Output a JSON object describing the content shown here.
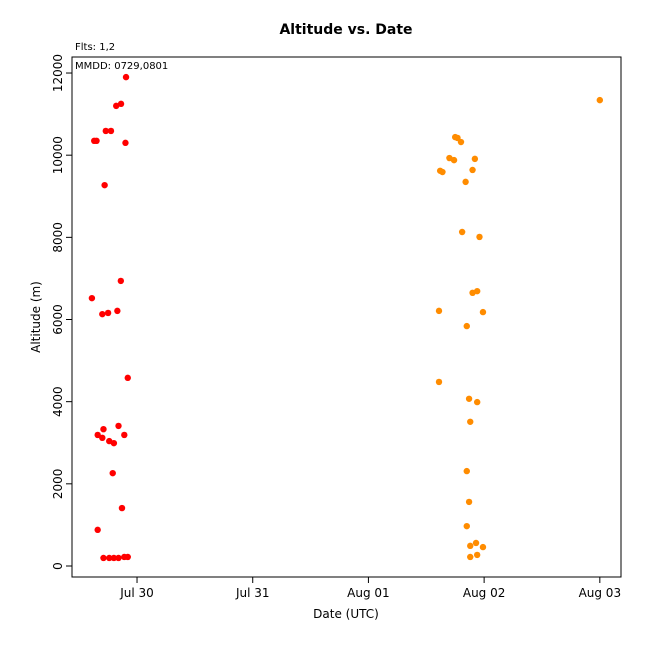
{
  "chart_data": {
    "type": "scatter",
    "title": "Altitude  vs. Date",
    "annotations": [
      "Flts: 1,2",
      "MMDD: 0729,0801"
    ],
    "x_label": "Date (UTC)",
    "y_label": "Altitude (m)",
    "xlim": [
      -0.562,
      4.183
    ],
    "ylim": [
      -268,
      12390
    ],
    "xticks": [
      {
        "value": 0,
        "label": "Jul 30"
      },
      {
        "value": 1,
        "label": "Jul 31"
      },
      {
        "value": 2,
        "label": "Aug 01"
      },
      {
        "value": 3,
        "label": "Aug 02"
      },
      {
        "value": 4,
        "label": "Aug 03"
      }
    ],
    "yticks": [
      0,
      2000,
      4000,
      6000,
      8000,
      10000,
      12000
    ],
    "grid": false,
    "series": [
      {
        "color": "#ff0000",
        "x": [
          -0.095,
          -0.138,
          -0.18,
          -0.27,
          -0.225,
          -0.37,
          -0.35,
          -0.1,
          -0.28,
          -0.14,
          -0.39,
          -0.3,
          -0.25,
          -0.17,
          -0.08,
          -0.16,
          -0.29,
          -0.34,
          -0.11,
          -0.3,
          -0.24,
          -0.2,
          -0.21,
          -0.13,
          -0.34,
          -0.29,
          -0.24,
          -0.2,
          -0.16,
          -0.11,
          -0.08
        ],
        "values": [
          11900,
          11250,
          11200,
          10590,
          10590,
          10350,
          10350,
          10300,
          9270,
          6940,
          6520,
          6130,
          6160,
          6210,
          4580,
          3410,
          3330,
          3190,
          3190,
          3120,
          3040,
          2990,
          2260,
          1410,
          880,
          195,
          195,
          195,
          195,
          220,
          220
        ]
      },
      {
        "color": "#ff8c00",
        "x": [
          4.0,
          2.75,
          2.77,
          2.8,
          2.7,
          2.74,
          2.92,
          2.62,
          2.64,
          2.9,
          2.84,
          2.81,
          2.96,
          2.9,
          2.94,
          2.61,
          2.99,
          2.85,
          2.61,
          2.87,
          2.94,
          2.88,
          2.85,
          2.87,
          2.85,
          2.93,
          2.88,
          2.99,
          2.88,
          2.94
        ],
        "values": [
          11340,
          10440,
          10420,
          10320,
          9930,
          9880,
          9910,
          9620,
          9590,
          9640,
          9350,
          8130,
          8010,
          6650,
          6690,
          6210,
          6180,
          5840,
          4480,
          4070,
          3990,
          3510,
          2310,
          1560,
          970,
          560,
          490,
          460,
          220,
          270
        ]
      }
    ]
  }
}
